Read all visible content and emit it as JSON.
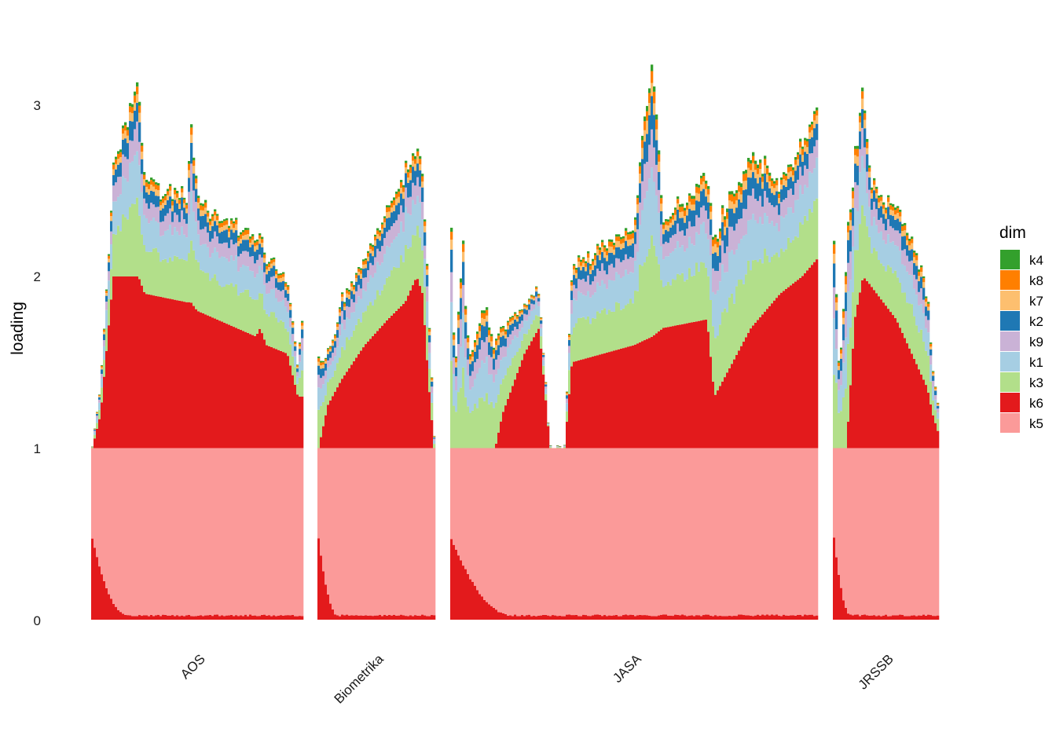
{
  "chart_data": {
    "type": "bar",
    "subtype": "stacked-structure-plot",
    "title": "",
    "xlabel": "",
    "ylabel": "loading",
    "ylim": [
      0,
      3.4
    ],
    "yticks": [
      0,
      1,
      2,
      3
    ],
    "grid": false,
    "legend": {
      "title": "dim",
      "position": "right",
      "entries": [
        {
          "key": "k4",
          "color": "#33a02c"
        },
        {
          "key": "k8",
          "color": "#ff7f00"
        },
        {
          "key": "k7",
          "color": "#fdbf6f"
        },
        {
          "key": "k2",
          "color": "#1f78b4"
        },
        {
          "key": "k9",
          "color": "#cab2d6"
        },
        {
          "key": "k1",
          "color": "#a6cee3"
        },
        {
          "key": "k3",
          "color": "#b2df8a"
        },
        {
          "key": "k6",
          "color": "#e31a1c"
        },
        {
          "key": "k5",
          "color": "#fb9a99"
        }
      ]
    },
    "stack_order_bottom_to_top": [
      "k5",
      "k6",
      "k3",
      "k1",
      "k9",
      "k2",
      "k7",
      "k8",
      "k4"
    ],
    "groups": [
      {
        "name": "AOS",
        "profile": [
          [
            0.0,
            1.0,
            1.0
          ],
          [
            0.04,
            1.2,
            1.35
          ],
          [
            0.1,
            2.0,
            2.62
          ],
          [
            0.22,
            2.0,
            3.12
          ],
          [
            0.25,
            1.9,
            2.55
          ],
          [
            0.45,
            1.85,
            2.45
          ],
          [
            0.47,
            1.85,
            2.95
          ],
          [
            0.5,
            1.8,
            2.45
          ],
          [
            0.78,
            1.65,
            2.2
          ],
          [
            0.8,
            1.7,
            2.25
          ],
          [
            0.83,
            1.6,
            2.1
          ],
          [
            0.93,
            1.55,
            2.0
          ],
          [
            0.98,
            1.3,
            1.5
          ],
          [
            1.0,
            1.3,
            1.78
          ]
        ]
      },
      {
        "name": "Biometrika",
        "profile": [
          [
            0.0,
            1.0,
            1.5
          ],
          [
            0.08,
            1.25,
            1.55
          ],
          [
            0.2,
            1.4,
            1.85
          ],
          [
            0.4,
            1.6,
            2.1
          ],
          [
            0.6,
            1.75,
            2.4
          ],
          [
            0.75,
            1.85,
            2.6
          ],
          [
            0.85,
            2.0,
            2.78
          ],
          [
            0.9,
            1.9,
            2.6
          ],
          [
            0.95,
            1.4,
            1.9
          ],
          [
            1.0,
            1.0,
            1.1
          ]
        ]
      },
      {
        "name": "JASA",
        "profile": [
          [
            0.0,
            1.0,
            2.2
          ],
          [
            0.01,
            1.0,
            1.45
          ],
          [
            0.03,
            1.0,
            2.15
          ],
          [
            0.05,
            1.0,
            1.55
          ],
          [
            0.09,
            1.0,
            1.8
          ],
          [
            0.12,
            1.0,
            1.6
          ],
          [
            0.14,
            1.2,
            1.7
          ],
          [
            0.2,
            1.55,
            1.85
          ],
          [
            0.24,
            1.7,
            1.92
          ],
          [
            0.27,
            1.0,
            1.0
          ],
          [
            0.31,
            1.0,
            1.0
          ],
          [
            0.33,
            1.5,
            2.05
          ],
          [
            0.5,
            1.6,
            2.3
          ],
          [
            0.55,
            1.65,
            3.38
          ],
          [
            0.58,
            1.7,
            2.3
          ],
          [
            0.7,
            1.75,
            2.6
          ],
          [
            0.72,
            1.3,
            2.2
          ],
          [
            0.82,
            1.7,
            2.7
          ],
          [
            0.9,
            1.9,
            2.55
          ],
          [
            0.96,
            2.0,
            2.75
          ],
          [
            1.0,
            2.1,
            2.95
          ]
        ]
      },
      {
        "name": "JRSSB",
        "profile": [
          [
            0.0,
            1.0,
            2.2
          ],
          [
            0.05,
            1.0,
            1.45
          ],
          [
            0.12,
            1.0,
            2.1
          ],
          [
            0.2,
            1.75,
            2.7
          ],
          [
            0.28,
            2.0,
            3.05
          ],
          [
            0.35,
            1.95,
            2.55
          ],
          [
            0.6,
            1.75,
            2.4
          ],
          [
            0.75,
            1.55,
            2.2
          ],
          [
            0.9,
            1.35,
            1.9
          ],
          [
            0.95,
            1.2,
            1.45
          ],
          [
            1.0,
            1.1,
            1.25
          ]
        ]
      }
    ]
  }
}
